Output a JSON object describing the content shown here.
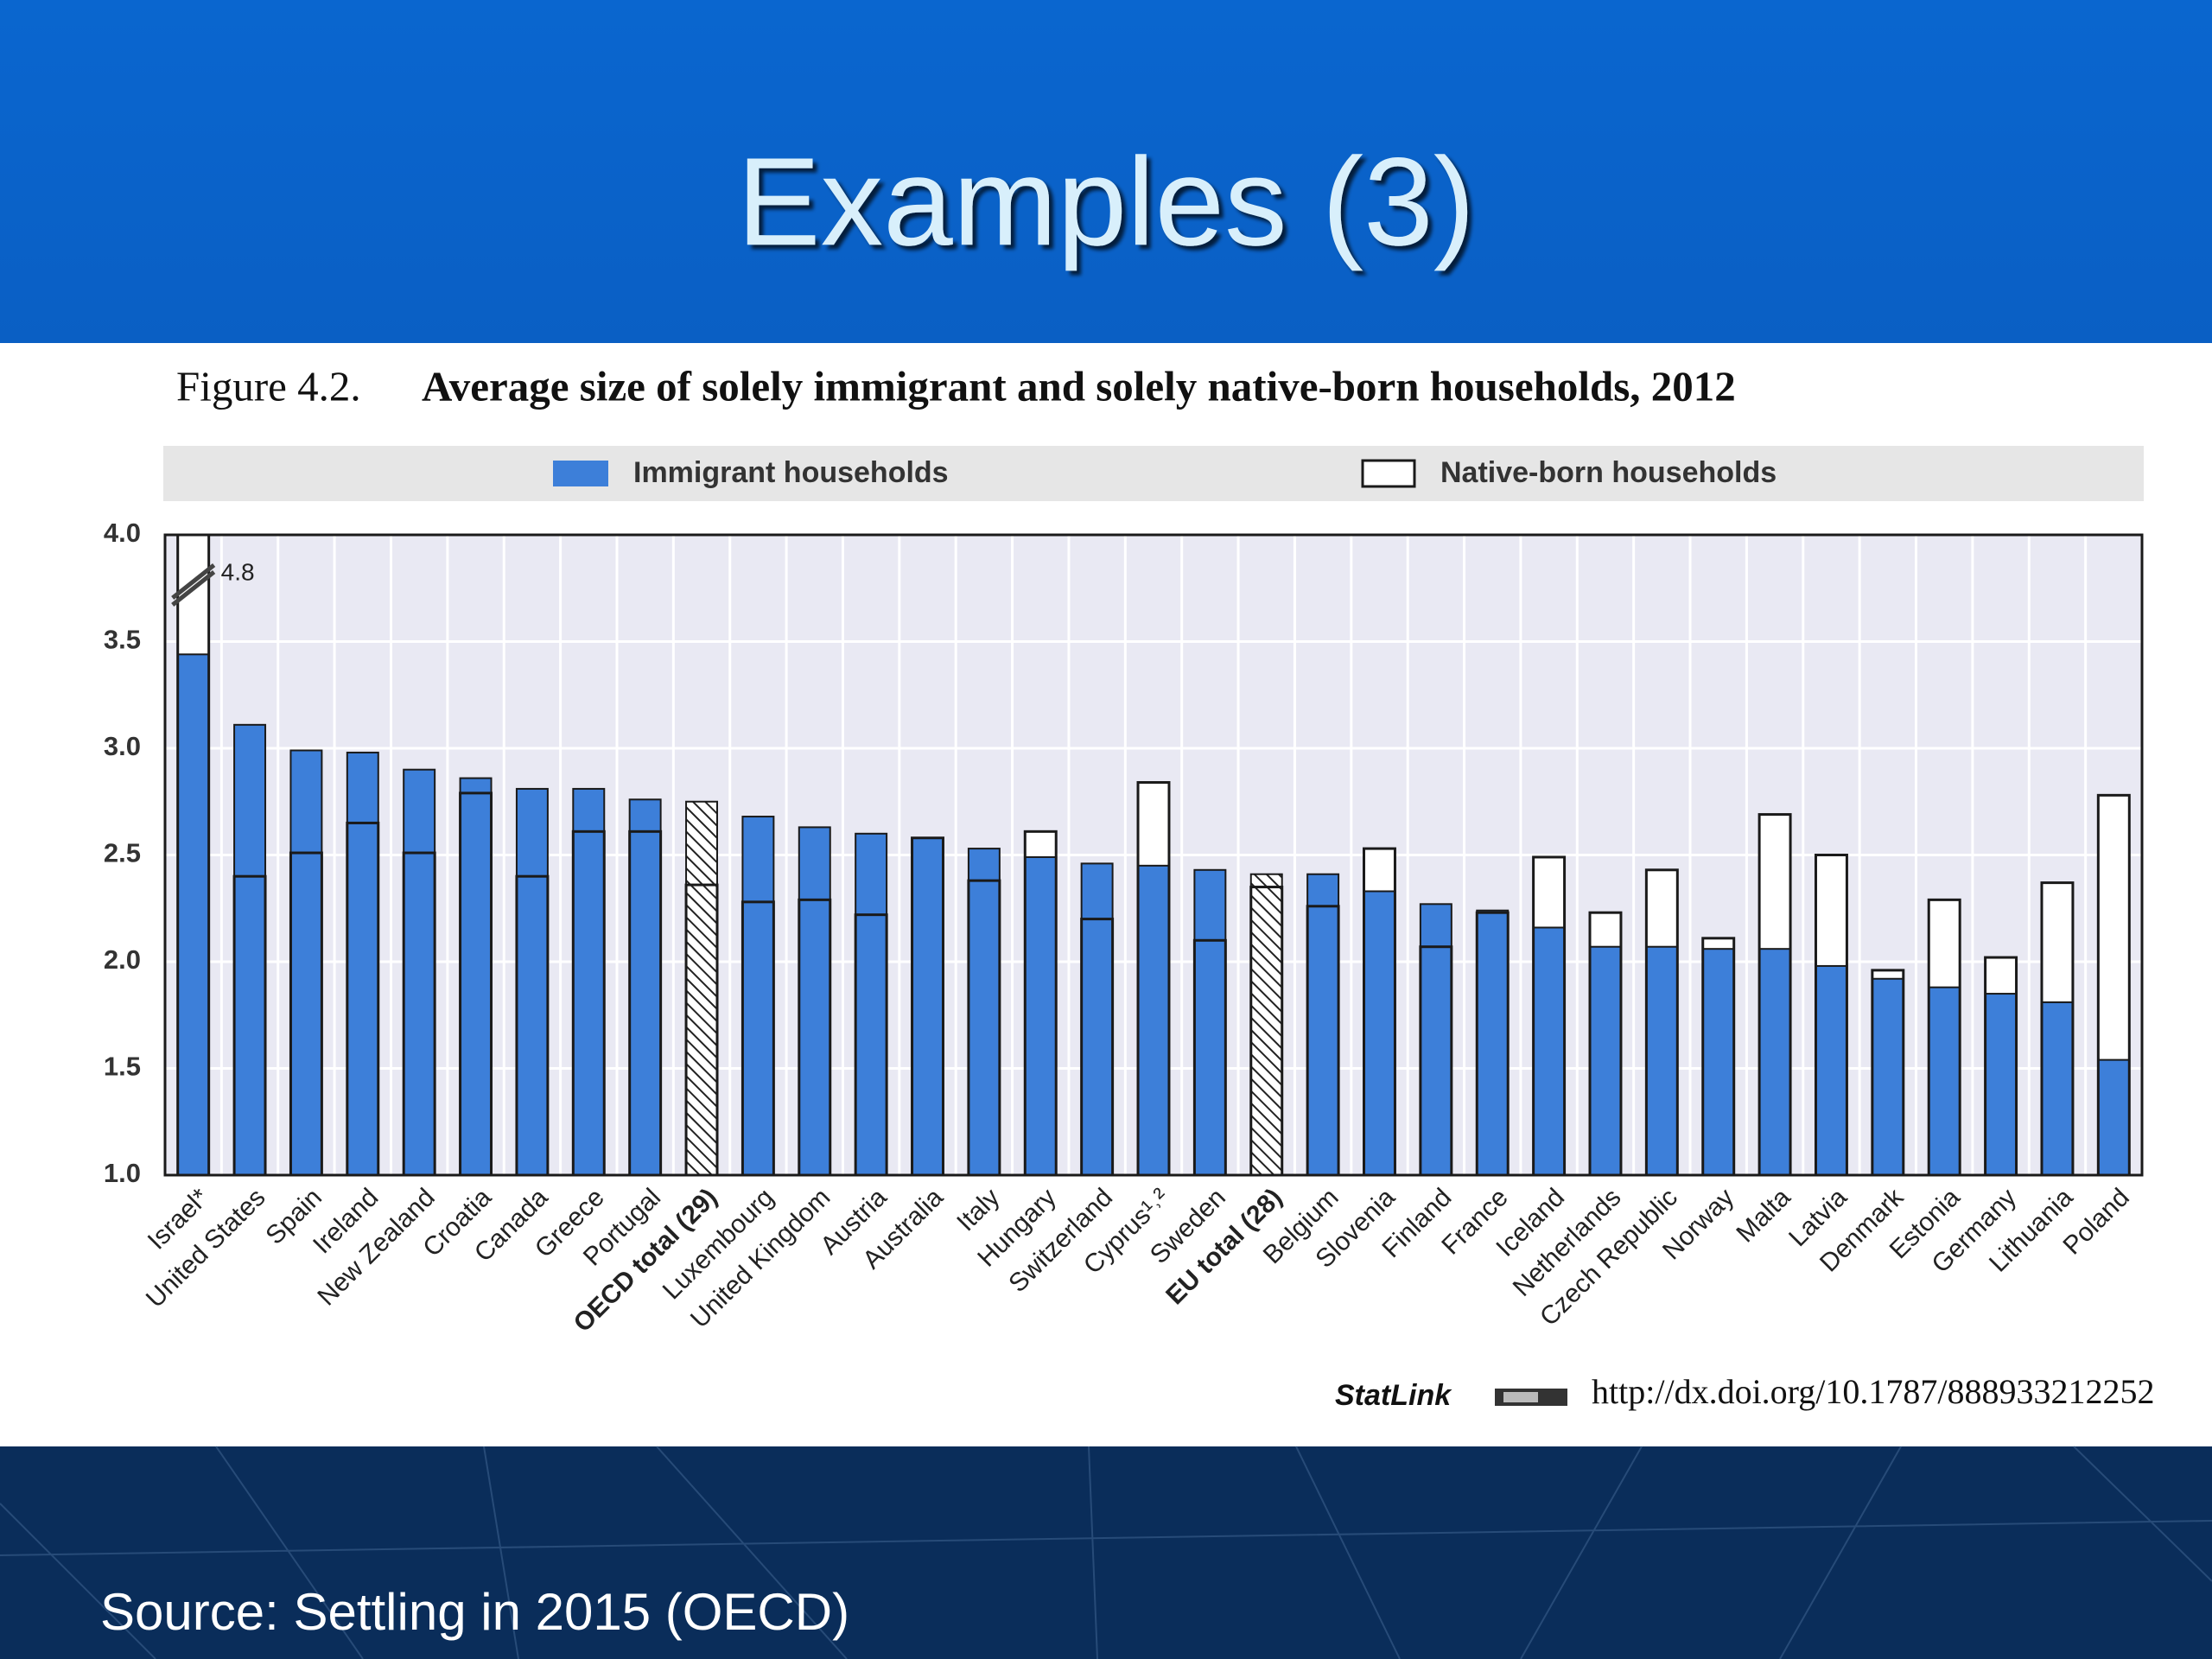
{
  "slide": {
    "title": "Examples (3)",
    "source": "Source: Settling in 2015 (OECD)"
  },
  "chart_data": {
    "type": "bar",
    "figure_label": "Figure 4.2.",
    "title": "Average size of solely immigrant and solely native-born households, 2012",
    "categories": [
      "Israel*",
      "United States",
      "Spain",
      "Ireland",
      "New Zealand",
      "Croatia",
      "Canada",
      "Greece",
      "Portugal",
      "OECD total (29)",
      "Luxembourg",
      "United Kingdom",
      "Austria",
      "Australia",
      "Italy",
      "Hungary",
      "Switzerland",
      "Cyprus¹˒²",
      "Sweden",
      "EU total (28)",
      "Belgium",
      "Slovenia",
      "Finland",
      "France",
      "Iceland",
      "Netherlands",
      "Czech Republic",
      "Norway",
      "Malta",
      "Latvia",
      "Denmark",
      "Estonia",
      "Germany",
      "Lithuania",
      "Poland"
    ],
    "series": [
      {
        "name": "Immigrant households",
        "color": "#3d7fd9",
        "values": [
          3.44,
          3.11,
          2.99,
          2.98,
          2.9,
          2.86,
          2.81,
          2.81,
          2.76,
          2.75,
          2.68,
          2.63,
          2.6,
          2.58,
          2.53,
          2.49,
          2.46,
          2.45,
          2.43,
          2.41,
          2.41,
          2.33,
          2.27,
          2.24,
          2.16,
          2.07,
          2.07,
          2.06,
          2.06,
          1.98,
          1.92,
          1.88,
          1.85,
          1.81,
          1.54
        ]
      },
      {
        "name": "Native-born households",
        "color": "#ffffff",
        "values": [
          4.8,
          2.4,
          2.51,
          2.65,
          2.51,
          2.79,
          2.4,
          2.61,
          2.61,
          2.36,
          2.28,
          2.29,
          2.22,
          2.58,
          2.38,
          2.61,
          2.2,
          2.84,
          2.1,
          2.35,
          2.26,
          2.53,
          2.07,
          2.23,
          2.49,
          2.23,
          2.43,
          2.11,
          2.69,
          2.5,
          1.96,
          2.29,
          2.02,
          2.37,
          2.78
        ],
        "value_labels": [
          "4.8",
          null,
          null,
          null,
          null,
          null,
          null,
          null,
          null,
          null,
          null,
          null,
          null,
          null,
          null,
          null,
          null,
          null,
          null,
          null,
          null,
          null,
          null,
          null,
          null,
          null,
          null,
          null,
          null,
          null,
          null,
          null,
          null,
          null,
          null
        ]
      }
    ],
    "hatched_categories": [
      9,
      19
    ],
    "edge_color": "#1a1a1a",
    "ylim": [
      1.0,
      4.0
    ],
    "yticks": [
      {
        "value": 1.0,
        "label": "1.0"
      },
      1.5,
      {
        "value": 2.0,
        "label": "2.0"
      },
      2.5,
      {
        "value": 3.0,
        "label": "3.0"
      },
      3.5,
      {
        "value": 4.0,
        "label": "4.0"
      }
    ],
    "grid": true
  },
  "statlink": {
    "label": "StatLink",
    "url": "http://dx.doi.org/10.1787/888933212252"
  }
}
